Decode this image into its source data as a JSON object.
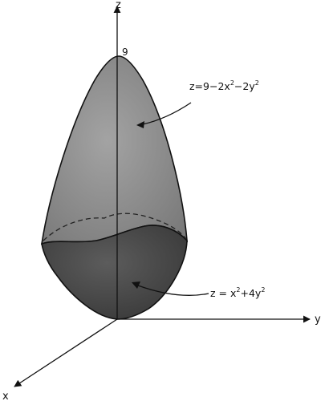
{
  "colors": {
    "upper_surface": "#8c8c8c",
    "lower_surface": "#4a4a4a",
    "outline": "#111111",
    "background": "#ffffff"
  },
  "axes": {
    "z_label": "z",
    "y_label": "y",
    "x_label": "x"
  },
  "apex_value": "9",
  "upper_surface": {
    "equation": "z=9−2x",
    "sup1": "2",
    "mid": "−2y",
    "sup2": "2"
  },
  "lower_surface": {
    "equation": "z = x",
    "sup1": "2",
    "mid": "+4y",
    "sup2": "2"
  }
}
